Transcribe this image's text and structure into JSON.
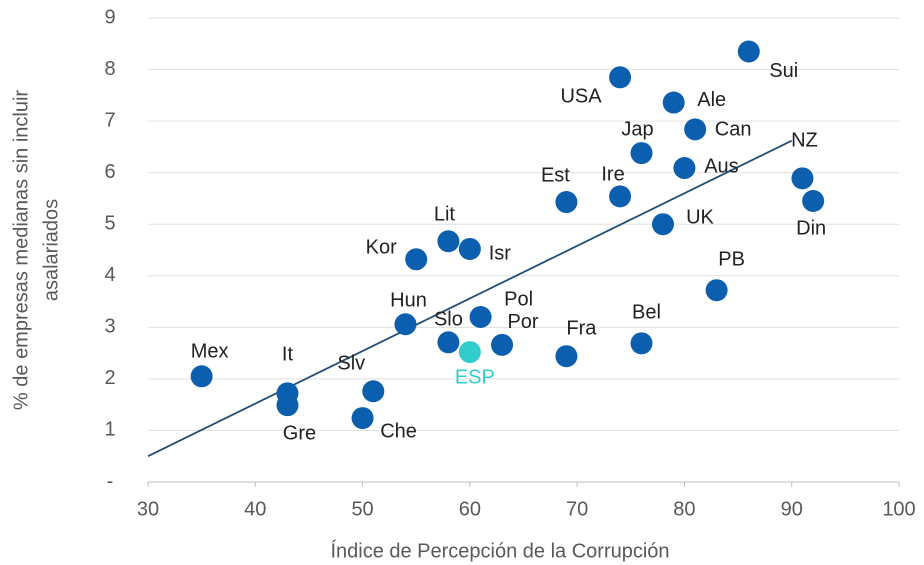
{
  "chart_data": {
    "type": "scatter",
    "xlabel": "Índice de Percepción de la Corrupción",
    "ylabel": [
      "% de empresas medianas sin incluir",
      "asalariados"
    ],
    "labels": [
      "Mex",
      "It",
      "Gre",
      "Slv",
      "Che",
      "Hun",
      "Slo",
      "ESP",
      "Pol",
      "Por",
      "Fra",
      "Bel",
      "Kor",
      "Lit",
      "Isr",
      "Est",
      "Ire",
      "UK",
      "USA",
      "Ale",
      "Jap",
      "Can",
      "Aus",
      "Sui",
      "NZ",
      "Din",
      "PB"
    ],
    "x": [
      35,
      43,
      43,
      51,
      50,
      54,
      58,
      60,
      61,
      63,
      69,
      76,
      55,
      58,
      60,
      69,
      74,
      78,
      74,
      79,
      76,
      81,
      80,
      86,
      91,
      92,
      83
    ],
    "y": [
      2.05,
      1.72,
      1.49,
      1.76,
      1.24,
      3.06,
      2.71,
      2.52,
      3.2,
      2.66,
      2.44,
      2.69,
      4.32,
      4.67,
      4.52,
      5.43,
      5.54,
      5.0,
      7.85,
      7.36,
      6.38,
      6.84,
      6.09,
      8.35,
      5.89,
      5.45,
      3.72
    ],
    "colors": [
      "#0b5fae",
      "#0b5fae",
      "#0b5fae",
      "#0b5fae",
      "#0b5fae",
      "#0b5fae",
      "#0b5fae",
      "#33cccc",
      "#0b5fae",
      "#0b5fae",
      "#0b5fae",
      "#0b5fae",
      "#0b5fae",
      "#0b5fae",
      "#0b5fae",
      "#0b5fae",
      "#0b5fae",
      "#0b5fae",
      "#0b5fae",
      "#0b5fae",
      "#0b5fae",
      "#0b5fae",
      "#0b5fae",
      "#0b5fae",
      "#0b5fae",
      "#0b5fae",
      "#0b5fae"
    ],
    "trendline": {
      "x": [
        30,
        90
      ],
      "y": [
        0.5,
        6.62
      ],
      "color": "#1f4e79"
    },
    "xlim": [
      30,
      100
    ],
    "xticks": [
      30,
      40,
      50,
      60,
      70,
      80,
      90,
      100
    ],
    "ylim": [
      0,
      9
    ],
    "yticks": [
      {
        "value": 0,
        "label": "-"
      },
      1,
      2,
      3,
      4,
      5,
      6,
      7,
      8,
      9
    ],
    "grid": true
  }
}
